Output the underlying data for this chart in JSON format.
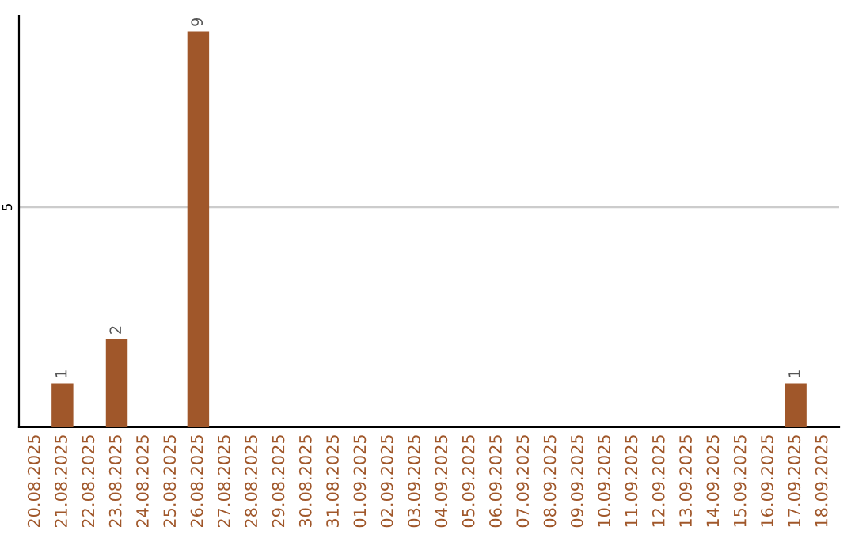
{
  "chart_data": {
    "type": "bar",
    "categories": [
      "20.08.2025",
      "21.08.2025",
      "22.08.2025",
      "23.08.2025",
      "24.08.2025",
      "25.08.2025",
      "26.08.2025",
      "27.08.2025",
      "28.08.2025",
      "29.08.2025",
      "30.08.2025",
      "31.08.2025",
      "01.09.2025",
      "02.09.2025",
      "03.09.2025",
      "04.09.2025",
      "05.09.2025",
      "06.09.2025",
      "07.09.2025",
      "08.09.2025",
      "09.09.2025",
      "10.09.2025",
      "11.09.2025",
      "12.09.2025",
      "13.09.2025",
      "14.09.2025",
      "15.09.2025",
      "16.09.2025",
      "17.09.2025",
      "18.09.2025"
    ],
    "values": [
      0,
      1,
      0,
      2,
      0,
      0,
      9,
      0,
      0,
      0,
      0,
      0,
      0,
      0,
      0,
      0,
      0,
      0,
      0,
      0,
      0,
      0,
      0,
      0,
      0,
      0,
      0,
      0,
      1,
      0
    ],
    "value_labels": [
      null,
      "1",
      null,
      "2",
      null,
      null,
      "9",
      null,
      null,
      null,
      null,
      null,
      null,
      null,
      null,
      null,
      null,
      null,
      null,
      null,
      null,
      null,
      null,
      null,
      null,
      null,
      null,
      null,
      "1",
      null
    ],
    "color": "#a0572a",
    "ylim": [
      0,
      9.35
    ],
    "yticks": [
      5
    ],
    "grid": "y",
    "legend": false
  }
}
